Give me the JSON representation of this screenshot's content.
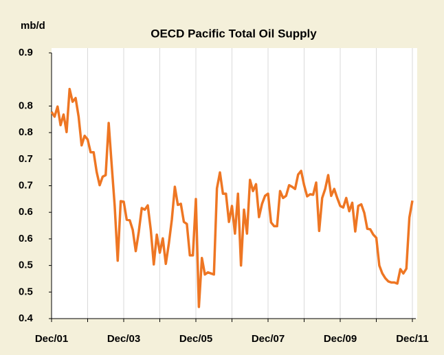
{
  "chart_data": {
    "type": "line",
    "title": "OECD Pacific Total Oil Supply",
    "y_label": "mb/d",
    "categories": [
      "Dec/01",
      null,
      null,
      null,
      null,
      null,
      null,
      null,
      null,
      null,
      null,
      null,
      null,
      null,
      null,
      null,
      null,
      null,
      null,
      null,
      null,
      null,
      null,
      null,
      "Dec/03",
      null,
      null,
      null,
      null,
      null,
      null,
      null,
      null,
      null,
      null,
      null,
      null,
      null,
      null,
      null,
      null,
      null,
      null,
      null,
      null,
      null,
      null,
      null,
      "Dec/05",
      null,
      null,
      null,
      null,
      null,
      null,
      null,
      null,
      null,
      null,
      null,
      null,
      null,
      null,
      null,
      null,
      null,
      null,
      null,
      null,
      null,
      null,
      null,
      "Dec/07",
      null,
      null,
      null,
      null,
      null,
      null,
      null,
      null,
      null,
      null,
      null,
      null,
      null,
      null,
      null,
      null,
      null,
      null,
      null,
      null,
      null,
      null,
      null,
      "Dec/09",
      null,
      null,
      null,
      null,
      null,
      null,
      null,
      null,
      null,
      null,
      null,
      null,
      null,
      null,
      null,
      null,
      null,
      null,
      null,
      null,
      null,
      null,
      null,
      "Dec/11"
    ],
    "values": [
      0.789,
      0.78,
      0.799,
      0.764,
      0.784,
      0.751,
      0.832,
      0.808,
      0.815,
      0.78,
      0.726,
      0.744,
      0.737,
      0.713,
      0.713,
      0.676,
      0.651,
      0.667,
      0.67,
      0.768,
      0.689,
      0.612,
      0.509,
      0.621,
      0.62,
      0.586,
      0.585,
      0.567,
      0.527,
      0.563,
      0.608,
      0.605,
      0.613,
      0.567,
      0.502,
      0.558,
      0.524,
      0.551,
      0.503,
      0.541,
      0.586,
      0.648,
      0.614,
      0.616,
      0.582,
      0.578,
      0.519,
      0.519,
      0.625,
      0.422,
      0.514,
      0.483,
      0.487,
      0.485,
      0.483,
      0.645,
      0.675,
      0.635,
      0.635,
      0.582,
      0.612,
      0.56,
      0.635,
      0.5,
      0.605,
      0.56,
      0.661,
      0.64,
      0.653,
      0.591,
      0.616,
      0.631,
      0.635,
      0.581,
      0.574,
      0.574,
      0.64,
      0.627,
      0.631,
      0.651,
      0.648,
      0.644,
      0.671,
      0.678,
      0.651,
      0.63,
      0.634,
      0.633,
      0.656,
      0.565,
      0.627,
      0.644,
      0.67,
      0.631,
      0.644,
      0.627,
      0.612,
      0.609,
      0.627,
      0.602,
      0.618,
      0.564,
      0.612,
      0.615,
      0.599,
      0.569,
      0.568,
      0.558,
      0.552,
      0.5,
      0.485,
      0.476,
      0.47,
      0.468,
      0.468,
      0.466,
      0.493,
      0.485,
      0.494,
      0.59,
      0.622
    ],
    "color": "#ee7623",
    "ylim": [
      0.4,
      0.9
    ],
    "yticks": [
      0.4,
      {
        "value": 0.45,
        "label": "0.5"
      },
      0.5,
      {
        "value": 0.55,
        "label": "0.6"
      },
      0.6,
      {
        "value": 0.65,
        "label": "0.7"
      },
      0.7,
      {
        "value": 0.75,
        "label": "0.8"
      },
      0.8,
      0.9
    ],
    "grid": true
  }
}
